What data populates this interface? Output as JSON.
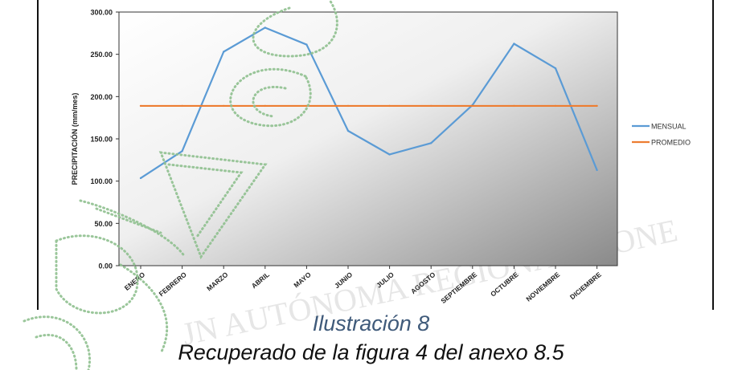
{
  "chart_data": {
    "type": "line",
    "categories": [
      "ENERO",
      "FEBRERO",
      "MARZO",
      "ABRIL",
      "MAYO",
      "JUNIO",
      "JULIO",
      "AGOSTO",
      "SEPTIEMBRE",
      "OCTUBRE",
      "NOVIEMBRE",
      "DICIEMBRE"
    ],
    "series": [
      {
        "name": "MENSUAL",
        "color": "#5b9bd5",
        "values": [
          103.5,
          135.5,
          253.0,
          281.5,
          261.5,
          159.5,
          131.5,
          145.0,
          190.0,
          262.5,
          233.5,
          113.0
        ]
      },
      {
        "name": "PROMEDIO",
        "color": "#ed7d31",
        "values": [
          189.0,
          189.0,
          189.0,
          189.0,
          189.0,
          189.0,
          189.0,
          189.0,
          189.0,
          189.0,
          189.0,
          189.0
        ]
      }
    ],
    "ylabel": "PRECIPITACIÓN (mm/mes)",
    "ylim": [
      0,
      300
    ],
    "yticks": [
      "0.00",
      "50.00",
      "100.00",
      "150.00",
      "200.00",
      "250.00",
      "300.00"
    ],
    "legend": "right",
    "grid": false
  },
  "caption": {
    "title": "Ilustración 8",
    "subtitle": "Recuperado de la figura 4 del anexo 8.5"
  }
}
